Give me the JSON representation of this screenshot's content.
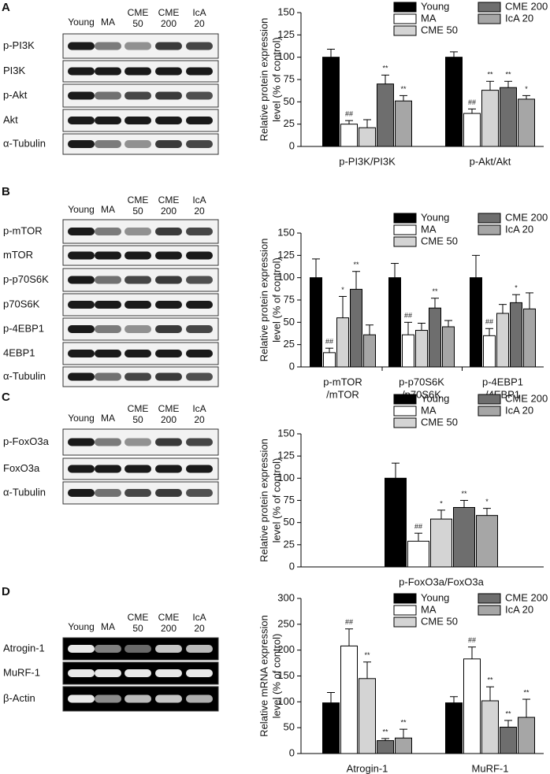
{
  "blots": [
    {
      "panel": "A",
      "lanes": [
        [
          "Young"
        ],
        [
          "MA"
        ],
        [
          "CME",
          "50"
        ],
        [
          "CME",
          "200"
        ],
        [
          "IcA",
          "20"
        ]
      ],
      "rows": [
        "p-PI3K",
        "PI3K",
        "p-Akt",
        "Akt",
        "α-Tubulin"
      ]
    },
    {
      "panel": "B",
      "lanes": [
        [
          "Young"
        ],
        [
          "MA"
        ],
        [
          "CME",
          "50"
        ],
        [
          "CME",
          "200"
        ],
        [
          "IcA",
          "20"
        ]
      ],
      "rows": [
        "p-mTOR",
        "mTOR",
        "p-p70S6K",
        "p70S6K",
        "p-4EBP1",
        "4EBP1",
        "α-Tubulin"
      ]
    },
    {
      "panel": "C",
      "lanes": [
        [
          "Young"
        ],
        [
          "MA"
        ],
        [
          "CME",
          "50"
        ],
        [
          "CME",
          "200"
        ],
        [
          "IcA",
          "20"
        ]
      ],
      "rows": [
        "p-FoxO3a",
        "FoxO3a",
        "α-Tubulin"
      ]
    },
    {
      "panel": "D",
      "lanes": [
        [
          "Young"
        ],
        [
          "MA"
        ],
        [
          "CME",
          "50"
        ],
        [
          "CME",
          "200"
        ],
        [
          "IcA",
          "20"
        ]
      ],
      "rows": [
        "Atrogin-1",
        "MuRF-1",
        "β-Actin"
      ]
    }
  ],
  "chart_data": [
    {
      "type": "bar",
      "ylabel": [
        "Relative protein expression",
        "level (% of control)"
      ],
      "categories": [
        [
          "p-PI3K/PI3K"
        ],
        [
          "p-Akt/Akt"
        ]
      ],
      "ylim": [
        0,
        150
      ],
      "yticks": [
        0,
        25,
        50,
        75,
        100,
        125,
        150
      ],
      "series": [
        {
          "name": "Young",
          "color": "#000000",
          "values": [
            100,
            100
          ],
          "errors": [
            9,
            6
          ],
          "marks": [
            null,
            null
          ]
        },
        {
          "name": "MA",
          "color": "#ffffff",
          "values": [
            25,
            37
          ],
          "errors": [
            4,
            5
          ],
          "marks": [
            "##",
            "##"
          ]
        },
        {
          "name": "CME 50",
          "color": "#d4d4d4",
          "values": [
            21,
            63
          ],
          "errors": [
            9,
            10
          ],
          "marks": [
            null,
            "**"
          ]
        },
        {
          "name": "CME 200",
          "color": "#6e6e6e",
          "values": [
            70,
            66
          ],
          "errors": [
            10,
            7
          ],
          "marks": [
            "**",
            "**"
          ]
        },
        {
          "name": "IcA 20",
          "color": "#a6a6a6",
          "values": [
            51,
            53
          ],
          "errors": [
            6,
            4
          ],
          "marks": [
            "**",
            "*"
          ]
        }
      ]
    },
    {
      "type": "bar",
      "ylabel": [
        "Relative protein expression",
        "level (% of control)"
      ],
      "categories": [
        [
          "p-mTOR",
          "/mTOR"
        ],
        [
          "p-p70S6K",
          "/p70S6K"
        ],
        [
          "p-4EBP1",
          "/4EBP1"
        ]
      ],
      "ylim": [
        0,
        150
      ],
      "yticks": [
        0,
        25,
        50,
        75,
        100,
        125,
        150
      ],
      "series": [
        {
          "name": "Young",
          "color": "#000000",
          "values": [
            100,
            100,
            100
          ],
          "errors": [
            21,
            16,
            25
          ],
          "marks": [
            null,
            null,
            null
          ]
        },
        {
          "name": "MA",
          "color": "#ffffff",
          "values": [
            16,
            36,
            35
          ],
          "errors": [
            5,
            14,
            8
          ],
          "marks": [
            "##",
            "##",
            "##"
          ]
        },
        {
          "name": "CME 50",
          "color": "#d4d4d4",
          "values": [
            55,
            41,
            60
          ],
          "errors": [
            24,
            8,
            10
          ],
          "marks": [
            "*",
            null,
            null
          ]
        },
        {
          "name": "CME 200",
          "color": "#6e6e6e",
          "values": [
            87,
            66,
            72
          ],
          "errors": [
            20,
            11,
            9
          ],
          "marks": [
            "**",
            "**",
            "*"
          ]
        },
        {
          "name": "IcA 20",
          "color": "#a6a6a6",
          "values": [
            36,
            45,
            65
          ],
          "errors": [
            11,
            7,
            18
          ],
          "marks": [
            null,
            null,
            null
          ]
        }
      ]
    },
    {
      "type": "bar",
      "ylabel": [
        "Relative protein expression",
        "level (% of control)"
      ],
      "categories": [
        [
          "p-FoxO3a/FoxO3a"
        ]
      ],
      "ylim": [
        0,
        150
      ],
      "yticks": [
        0,
        25,
        50,
        75,
        100,
        125,
        150
      ],
      "series": [
        {
          "name": "Young",
          "color": "#000000",
          "values": [
            100
          ],
          "errors": [
            17
          ],
          "marks": [
            null
          ]
        },
        {
          "name": "MA",
          "color": "#ffffff",
          "values": [
            29
          ],
          "errors": [
            9
          ],
          "marks": [
            "##"
          ]
        },
        {
          "name": "CME 50",
          "color": "#d4d4d4",
          "values": [
            54
          ],
          "errors": [
            10
          ],
          "marks": [
            "*"
          ]
        },
        {
          "name": "CME 200",
          "color": "#6e6e6e",
          "values": [
            67
          ],
          "errors": [
            8
          ],
          "marks": [
            "**"
          ]
        },
        {
          "name": "IcA 20",
          "color": "#a6a6a6",
          "values": [
            58
          ],
          "errors": [
            8
          ],
          "marks": [
            "*"
          ]
        }
      ]
    },
    {
      "type": "bar",
      "ylabel": [
        "Relative mRNA expression",
        "level (% of control)"
      ],
      "categories": [
        [
          "Atrogin-1"
        ],
        [
          "MuRF-1"
        ]
      ],
      "ylim": [
        0,
        300
      ],
      "yticks": [
        0,
        50,
        100,
        150,
        200,
        250,
        300
      ],
      "series": [
        {
          "name": "Young",
          "color": "#000000",
          "values": [
            98,
            98
          ],
          "errors": [
            20,
            12
          ],
          "marks": [
            null,
            null
          ]
        },
        {
          "name": "MA",
          "color": "#ffffff",
          "values": [
            208,
            183
          ],
          "errors": [
            33,
            23
          ],
          "marks": [
            "##",
            "##"
          ]
        },
        {
          "name": "CME 50",
          "color": "#d4d4d4",
          "values": [
            145,
            102
          ],
          "errors": [
            32,
            27
          ],
          "marks": [
            "**",
            "**"
          ]
        },
        {
          "name": "CME 200",
          "color": "#6e6e6e",
          "values": [
            25,
            51
          ],
          "errors": [
            4,
            13
          ],
          "marks": [
            "**",
            "**"
          ]
        },
        {
          "name": "IcA 20",
          "color": "#a6a6a6",
          "values": [
            30,
            70
          ],
          "errors": [
            17,
            35
          ],
          "marks": [
            "**",
            "**"
          ]
        }
      ]
    }
  ]
}
